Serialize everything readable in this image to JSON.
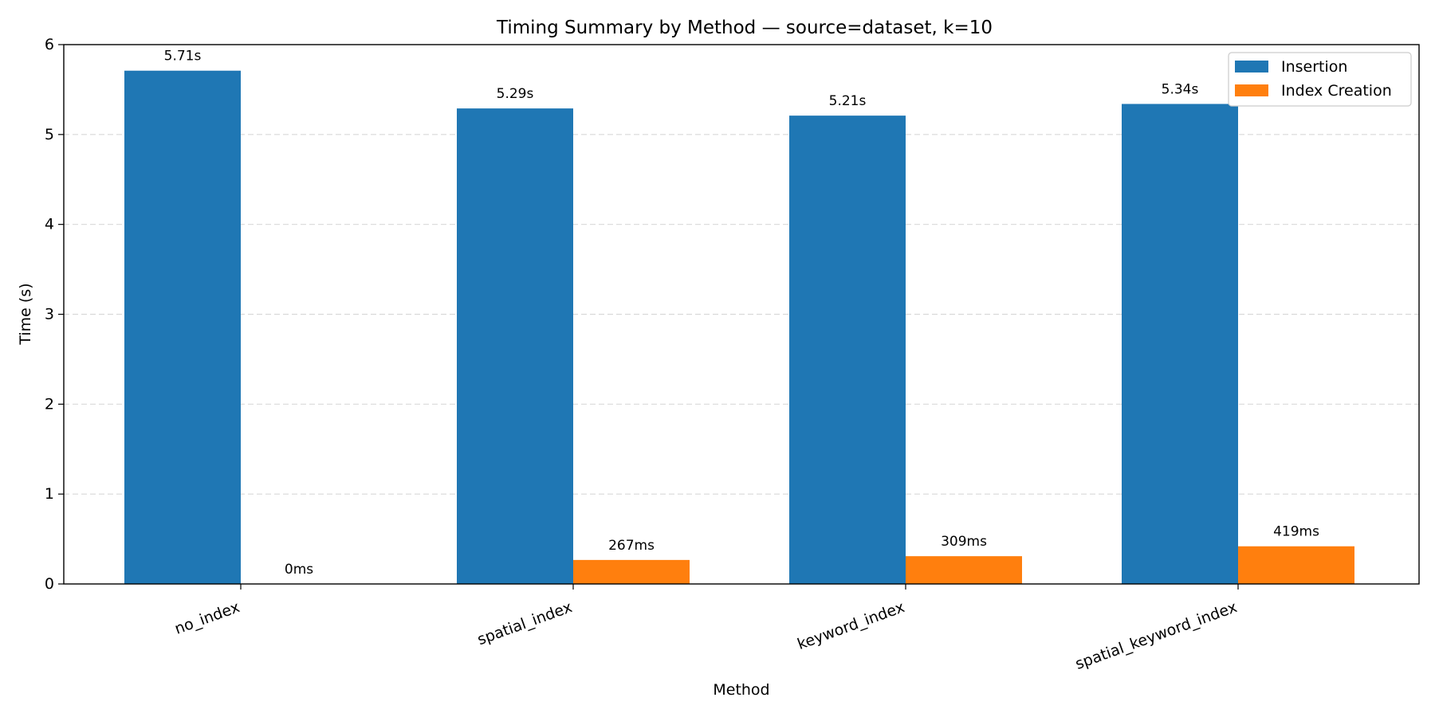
{
  "chart_data": {
    "type": "bar",
    "title": "Timing Summary by Method — source=dataset, k=10",
    "xlabel": "Method",
    "ylabel": "Time (s)",
    "ylim": [
      0,
      6
    ],
    "yticks": [
      "0",
      "1",
      "2",
      "3",
      "4",
      "5",
      "6"
    ],
    "grid": "y-dashed",
    "legend_position": "top-right",
    "categories": [
      "no_index",
      "spatial_index",
      "keyword_index",
      "spatial_keyword_index"
    ],
    "series": [
      {
        "name": "Insertion",
        "color": "#1f77b4",
        "values": [
          5.71,
          5.29,
          5.21,
          5.34
        ],
        "labels": [
          "5.71s",
          "5.29s",
          "5.21s",
          "5.34s"
        ]
      },
      {
        "name": "Index Creation",
        "color": "#ff7f0e",
        "values": [
          0.0,
          0.267,
          0.309,
          0.419
        ],
        "labels": [
          "0ms",
          "267ms",
          "309ms",
          "419ms"
        ]
      }
    ]
  }
}
